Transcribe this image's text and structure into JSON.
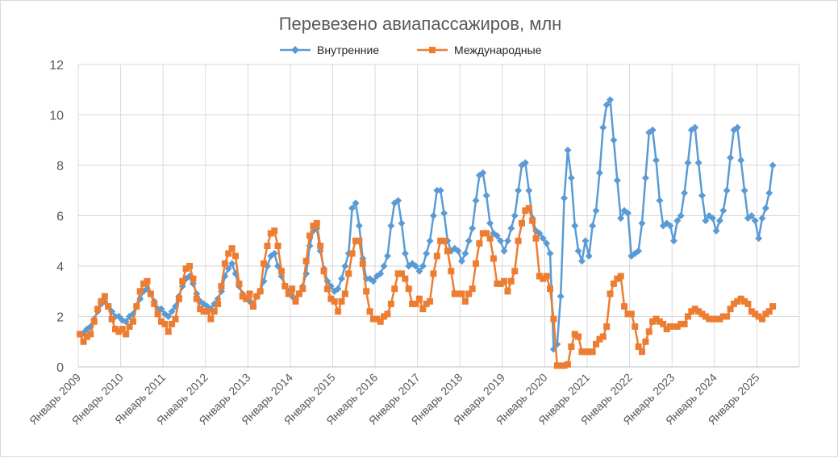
{
  "chart_data": {
    "type": "line",
    "title": "Перевезено авиапассажиров, млн",
    "ylim": [
      0,
      12
    ],
    "yticks": [
      0,
      2,
      4,
      6,
      8,
      10,
      12
    ],
    "grid": true,
    "legend_position": "top",
    "x_tick_labels": [
      "Январь 2009",
      "Январь 2010",
      "Январь 2011",
      "Январь 2012",
      "Январь 2013",
      "Январь 2014",
      "Январь 2015",
      "Январь 2016",
      "Январь 2017",
      "Январь 2018",
      "Январь 2019",
      "Январь 2020",
      "Январь 2021",
      "Январь 2022",
      "Январь 2023",
      "Январь 2024",
      "Январь 2025"
    ],
    "x_start": "2009-01",
    "colors": {
      "domestic": "#5b9bd5",
      "international": "#ed7d31"
    },
    "series": [
      {
        "name": "Внутренние",
        "values": [
          1.3,
          1.35,
          1.5,
          1.6,
          1.9,
          2.2,
          2.5,
          2.6,
          2.4,
          2.2,
          2.0,
          2.0,
          1.85,
          1.8,
          2.0,
          2.1,
          2.4,
          2.7,
          3.0,
          3.1,
          2.9,
          2.6,
          2.3,
          2.3,
          2.1,
          2.0,
          2.2,
          2.4,
          2.8,
          3.2,
          3.5,
          3.6,
          3.3,
          2.9,
          2.6,
          2.5,
          2.4,
          2.3,
          2.5,
          2.7,
          3.0,
          3.6,
          3.9,
          4.1,
          3.7,
          3.2,
          2.9,
          2.7,
          2.6,
          2.5,
          2.8,
          3.0,
          3.4,
          4.0,
          4.4,
          4.5,
          4.0,
          3.6,
          3.2,
          3.0,
          2.8,
          2.7,
          2.9,
          3.2,
          3.7,
          4.8,
          5.4,
          5.5,
          4.6,
          3.9,
          3.4,
          3.2,
          3.0,
          3.1,
          3.5,
          4.0,
          4.5,
          6.3,
          6.5,
          5.6,
          4.3,
          3.5,
          3.5,
          3.4,
          3.6,
          3.7,
          4.0,
          4.4,
          5.6,
          6.5,
          6.6,
          5.7,
          4.5,
          4.0,
          4.1,
          4.0,
          3.8,
          4.0,
          4.5,
          5.0,
          6.0,
          7.0,
          7.0,
          6.1,
          5.0,
          4.6,
          4.7,
          4.6,
          4.2,
          4.5,
          5.0,
          5.5,
          6.6,
          7.6,
          7.7,
          6.8,
          5.7,
          5.3,
          5.2,
          5.0,
          4.6,
          5.0,
          5.5,
          6.0,
          7.0,
          8.0,
          8.1,
          7.0,
          5.9,
          5.4,
          5.3,
          5.1,
          4.9,
          4.5,
          0.7,
          0.9,
          2.8,
          6.7,
          8.6,
          7.5,
          5.6,
          4.6,
          4.2,
          5.0,
          4.4,
          5.6,
          6.2,
          7.7,
          9.5,
          10.4,
          10.6,
          9.0,
          7.4,
          5.9,
          6.2,
          6.1,
          4.4,
          4.5,
          4.6,
          5.7,
          7.5,
          9.3,
          9.4,
          8.2,
          6.6,
          5.6,
          5.7,
          5.6,
          5.0,
          5.8,
          6.0,
          6.9,
          8.1,
          9.4,
          9.5,
          8.1,
          6.8,
          5.8,
          6.0,
          5.9,
          5.4,
          5.8,
          6.2,
          7.0,
          8.3,
          9.4,
          9.5,
          8.2,
          7.0,
          5.9,
          6.0,
          5.8,
          5.1,
          5.9,
          6.3,
          6.9,
          8.0
        ]
      },
      {
        "name": "Международные",
        "values": [
          1.3,
          1.0,
          1.2,
          1.3,
          1.8,
          2.3,
          2.6,
          2.8,
          2.4,
          1.9,
          1.5,
          1.4,
          1.5,
          1.3,
          1.6,
          1.8,
          2.4,
          3.0,
          3.3,
          3.4,
          2.9,
          2.5,
          2.1,
          1.8,
          1.7,
          1.4,
          1.7,
          1.9,
          2.7,
          3.4,
          3.9,
          4.0,
          3.5,
          2.7,
          2.3,
          2.2,
          2.2,
          1.9,
          2.2,
          2.5,
          3.2,
          4.1,
          4.5,
          4.7,
          4.4,
          3.3,
          2.8,
          2.7,
          2.9,
          2.4,
          2.8,
          3.0,
          4.1,
          4.8,
          5.3,
          5.4,
          4.8,
          3.8,
          3.2,
          2.9,
          3.1,
          2.6,
          2.9,
          3.1,
          4.2,
          5.2,
          5.6,
          5.7,
          4.8,
          3.8,
          3.1,
          2.7,
          2.6,
          2.2,
          2.6,
          2.9,
          3.7,
          4.5,
          5.0,
          5.0,
          4.1,
          3.0,
          2.2,
          1.9,
          1.9,
          1.8,
          2.0,
          2.1,
          2.5,
          3.1,
          3.7,
          3.7,
          3.5,
          3.1,
          2.5,
          2.5,
          2.7,
          2.3,
          2.5,
          2.6,
          3.7,
          4.4,
          5.0,
          5.0,
          4.6,
          3.8,
          2.9,
          2.9,
          2.9,
          2.6,
          2.9,
          3.1,
          4.1,
          4.9,
          5.3,
          5.3,
          5.1,
          4.3,
          3.3,
          3.3,
          3.4,
          3.0,
          3.4,
          3.8,
          5.0,
          5.7,
          6.2,
          6.3,
          5.8,
          5.1,
          3.6,
          3.5,
          3.6,
          3.1,
          1.9,
          0.05,
          0.05,
          0.05,
          0.1,
          0.8,
          1.3,
          1.2,
          0.6,
          0.6,
          0.6,
          0.6,
          0.9,
          1.1,
          1.2,
          1.6,
          2.9,
          3.3,
          3.5,
          3.6,
          2.4,
          2.1,
          2.1,
          1.6,
          0.8,
          0.6,
          1.0,
          1.4,
          1.8,
          1.9,
          1.8,
          1.7,
          1.5,
          1.6,
          1.6,
          1.6,
          1.7,
          1.7,
          2.0,
          2.2,
          2.3,
          2.2,
          2.1,
          2.0,
          1.9,
          1.9,
          1.9,
          1.9,
          2.0,
          2.0,
          2.3,
          2.5,
          2.6,
          2.7,
          2.6,
          2.5,
          2.2,
          2.1,
          2.0,
          1.9,
          2.1,
          2.2,
          2.4
        ]
      }
    ]
  }
}
